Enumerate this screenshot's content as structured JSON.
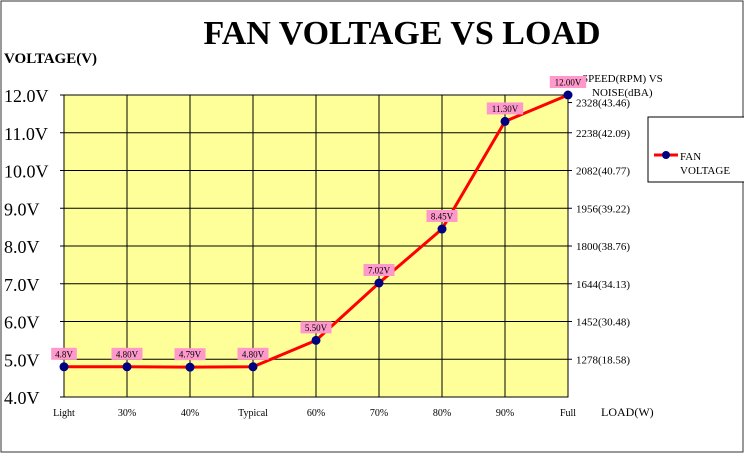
{
  "chart_data": {
    "type": "line",
    "title": "FAN VOLTAGE VS LOAD",
    "ylabel": "VOLTAGE(V)",
    "xlabel": "LOAD(W)",
    "y2label_line1": "SPEED(RPM) VS",
    "y2label_line2": "NOISE(dBA)",
    "categories": [
      "Light",
      "30%",
      "40%",
      "Typical",
      "60%",
      "70%",
      "80%",
      "90%",
      "Full"
    ],
    "ylim": [
      4.0,
      12.0
    ],
    "yticks": [
      "4.0V",
      "5.0V",
      "6.0V",
      "7.0V",
      "8.0V",
      "9.0V",
      "10.0V",
      "11.0V",
      "12.0V"
    ],
    "y2ticks": [
      "1278(18.58)",
      "1452(30.48)",
      "1644(34.13)",
      "1800(38.76)",
      "1956(39.22)",
      "2082(40.77)",
      "2238(42.09)",
      "2328(43.46)"
    ],
    "y2tick_values": [
      5,
      6,
      7,
      8,
      9,
      10,
      11,
      11.8
    ],
    "series": [
      {
        "name": "FAN VOLTAGE",
        "values": [
          4.8,
          4.8,
          4.79,
          4.8,
          5.5,
          7.02,
          8.45,
          11.3,
          12.0
        ],
        "labels": [
          "4.8V",
          "4.80V",
          "4.79V",
          "4.80V",
          "5.50V",
          "7.02V",
          "8.45V",
          "11.30V",
          "12.00V"
        ]
      }
    ],
    "legend_line1": "FAN",
    "legend_line2": "VOLTAGE",
    "grid": true,
    "legend_position": "right",
    "colors": {
      "plot_bg": "#ffff99",
      "grid": "#000000",
      "line": "#ff0000",
      "marker": "#000080",
      "label_bg": "#ff99cc"
    }
  }
}
